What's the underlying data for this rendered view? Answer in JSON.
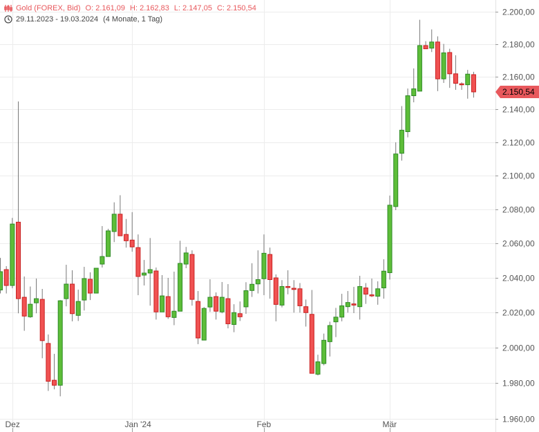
{
  "header": {
    "instrument": "Gold (FOREX, Bid)",
    "open": "O: 2.161,09",
    "high": "H: 2.162,83",
    "low": "L: 2.147,05",
    "close": "C: 2.150,54",
    "range": "29.11.2023 - 19.03.2024",
    "period": "(4 Monate, 1 Tag)",
    "instrument_icon": "candlestick-icon",
    "range_icon": "clock-icon"
  },
  "last_price_tag": "2.150,54",
  "colors": {
    "up": "#5dbd39",
    "up_border": "#2f8a26",
    "down": "#f05252",
    "down_border": "#c82020",
    "wick": "#777777",
    "accent": "#e8585c",
    "grid": "#ececec"
  },
  "chart_data": {
    "type": "candlestick",
    "title": "Gold (FOREX, Bid)",
    "y_scale": "log",
    "ylim": [
      1960,
      2200
    ],
    "yticks": [
      2200,
      2180,
      2160,
      2140,
      2120,
      2100,
      2080,
      2060,
      2040,
      2020,
      2000,
      1980,
      1960
    ],
    "ytick_labels": [
      "2.200,00",
      "2.180,00",
      "2.160,00",
      "2.140,00",
      "2.120,00",
      "2.100,00",
      "2.080,00",
      "2.060,00",
      "2.040,00",
      "2.020,00",
      "2.000,00",
      "1.980,00",
      "1.960,00"
    ],
    "xticks": [
      {
        "label": "Dez",
        "candle": 2
      },
      {
        "label": "Jan '24",
        "candle": 22
      },
      {
        "label": "Feb",
        "candle": 44
      },
      {
        "label": "Mär",
        "candle": 65
      }
    ],
    "grid": true,
    "ohlc_fields": [
      "open",
      "high",
      "low",
      "close"
    ],
    "candles": [
      [
        2033,
        2051.6,
        2031,
        2043.6
      ],
      [
        2044.8,
        2046.8,
        2031,
        2035.6
      ],
      [
        2035.6,
        2075,
        2034,
        2071.4
      ],
      [
        2072.5,
        2144.7,
        2019.6,
        2028
      ],
      [
        2028.8,
        2040.8,
        2009.6,
        2018
      ],
      [
        2017.6,
        2035,
        2017,
        2024.8
      ],
      [
        2025.6,
        2039.6,
        2019.6,
        2028
      ],
      [
        2027.6,
        2033.6,
        1994,
        2004
      ],
      [
        2002.4,
        2007.5,
        1975.6,
        1981
      ],
      [
        1981.6,
        1996.5,
        1976.5,
        1978.8
      ],
      [
        1978.8,
        2027.2,
        1972.6,
        2026.8
      ],
      [
        2028,
        2047.6,
        2023.6,
        2036.4
      ],
      [
        2036.4,
        2044.4,
        2015,
        2019.4
      ],
      [
        2018.4,
        2033.2,
        2015.2,
        2026.4
      ],
      [
        2027.2,
        2046.4,
        2021.2,
        2039.6
      ],
      [
        2039.2,
        2043.2,
        2027.2,
        2031.2
      ],
      [
        2031.2,
        2045.6,
        2031.2,
        2045.6
      ],
      [
        2048,
        2070.2,
        2046,
        2052.4
      ],
      [
        2052.4,
        2068.6,
        2052.4,
        2067.4
      ],
      [
        2067,
        2084.2,
        2060.8,
        2077.2
      ],
      [
        2077.2,
        2088.4,
        2064.5,
        2064.5
      ],
      [
        2065.3,
        2074.4,
        2057.6,
        2061.6
      ],
      [
        2062,
        2078.4,
        2055.2,
        2058
      ],
      [
        2057.6,
        2065.3,
        2030,
        2040.8
      ],
      [
        2041.6,
        2050.4,
        2035.6,
        2042.8
      ],
      [
        2042.8,
        2063.2,
        2024,
        2044.8
      ],
      [
        2044,
        2046,
        2016,
        2020.4
      ],
      [
        2020.4,
        2041.6,
        2020.4,
        2029.6
      ],
      [
        2029.2,
        2040,
        2016.4,
        2017.6
      ],
      [
        2017.2,
        2043.6,
        2012.8,
        2020.8
      ],
      [
        2020.8,
        2061.6,
        2020.8,
        2048.4
      ],
      [
        2048,
        2058,
        2045.6,
        2054.5
      ],
      [
        2053.6,
        2056,
        2024,
        2027.6
      ],
      [
        2026.4,
        2032.4,
        2002,
        2005.5
      ],
      [
        2004.3,
        2023.2,
        2004.3,
        2022.4
      ],
      [
        2023.2,
        2039.2,
        2020.4,
        2028.8
      ],
      [
        2029.2,
        2031.6,
        2016,
        2020.8
      ],
      [
        2020.4,
        2037.6,
        2019.6,
        2028.8
      ],
      [
        2028,
        2036.4,
        2011,
        2013.6
      ],
      [
        2013.2,
        2024.8,
        2008.8,
        2020
      ],
      [
        2019.4,
        2026.4,
        2015.2,
        2017.6
      ],
      [
        2023.3,
        2037.5,
        2019.3,
        2032.6
      ],
      [
        2032.7,
        2048.5,
        2029,
        2036.3
      ],
      [
        2036.5,
        2056,
        2031,
        2039
      ],
      [
        2039.5,
        2065.3,
        2030,
        2054.3
      ],
      [
        2053.6,
        2057.6,
        2028,
        2039
      ],
      [
        2040,
        2042,
        2015,
        2024.7
      ],
      [
        2024.3,
        2038.7,
        2023,
        2035
      ],
      [
        2035,
        2044.4,
        2030.5,
        2034.4
      ],
      [
        2034,
        2038.7,
        2020,
        2033.3
      ],
      [
        2033.7,
        2037,
        2020,
        2023.9
      ],
      [
        2023.4,
        2027.5,
        2012,
        2020
      ],
      [
        2019,
        2033,
        1985.3,
        1985.5
      ],
      [
        1985,
        1996,
        1984.3,
        1992
      ],
      [
        1991,
        2008,
        1990,
        2004.2
      ],
      [
        2003.4,
        2014.8,
        1995,
        2012.6
      ],
      [
        2014.7,
        2022.7,
        2006,
        2017.4
      ],
      [
        2017.4,
        2030.8,
        2015,
        2023.9
      ],
      [
        2023.4,
        2032.4,
        2020,
        2025.8
      ],
      [
        2025,
        2034.8,
        2019.7,
        2024.3
      ],
      [
        2023.4,
        2041.2,
        2016,
        2035
      ],
      [
        2034.2,
        2037,
        2025,
        2030.6
      ],
      [
        2030.2,
        2039.6,
        2028.9,
        2029.6
      ],
      [
        2029.4,
        2038,
        2024.5,
        2033.7
      ],
      [
        2034.2,
        2050.8,
        2028,
        2043.9
      ],
      [
        2043,
        2088.2,
        2039,
        2082.5
      ],
      [
        2081.7,
        2120,
        2079.6,
        2113
      ],
      [
        2113.4,
        2141.9,
        2109,
        2127.3
      ],
      [
        2126.4,
        2152.6,
        2123,
        2148.2
      ],
      [
        2148.2,
        2164.9,
        2144.2,
        2152.4
      ],
      [
        2151,
        2195,
        2151,
        2179
      ],
      [
        2179,
        2181.7,
        2177,
        2177
      ],
      [
        2177.4,
        2189,
        2175,
        2181.2
      ],
      [
        2181.2,
        2184.7,
        2151,
        2158.5
      ],
      [
        2158.5,
        2180,
        2156,
        2174.5
      ],
      [
        2174.7,
        2177,
        2153,
        2161.6
      ],
      [
        2161.6,
        2173,
        2151.8,
        2155.8
      ],
      [
        2155.5,
        2156.4,
        2151.8,
        2154.9
      ],
      [
        2154.9,
        2164,
        2146.4,
        2161.4
      ],
      [
        2161.09,
        2162.83,
        2147.05,
        2150.54
      ]
    ],
    "last_price": 2150.54
  }
}
